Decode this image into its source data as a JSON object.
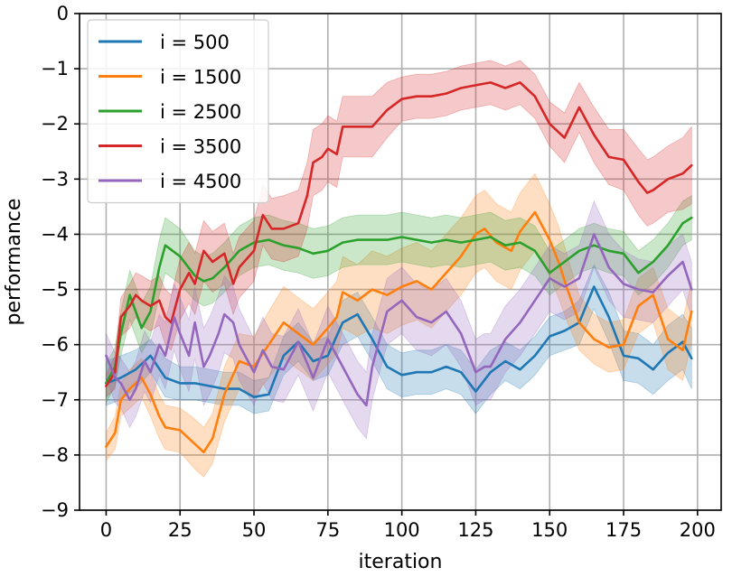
{
  "chart_data": {
    "type": "line",
    "title": "",
    "xlabel": "iteration",
    "ylabel": "performance",
    "xlim": [
      -9,
      208
    ],
    "ylim": [
      -9,
      0
    ],
    "xticks": [
      0,
      25,
      50,
      75,
      100,
      125,
      150,
      175,
      200
    ],
    "yticks": [
      0,
      -1,
      -2,
      -3,
      -4,
      -5,
      -6,
      -7,
      -8,
      -9
    ],
    "ytick_labels": [
      "0",
      "−1",
      "−2",
      "−3",
      "−4",
      "−5",
      "−6",
      "−7",
      "−8",
      "−9"
    ],
    "grid": true,
    "legend_position": "top-left",
    "series": [
      {
        "name": "i = 500",
        "color": "#1f77b4",
        "x": [
          0,
          5,
          10,
          15,
          20,
          25,
          30,
          35,
          40,
          45,
          50,
          55,
          60,
          65,
          70,
          75,
          80,
          85,
          90,
          95,
          100,
          105,
          110,
          115,
          120,
          125,
          130,
          135,
          140,
          145,
          150,
          155,
          160,
          165,
          170,
          175,
          180,
          185,
          190,
          195,
          198
        ],
        "y": [
          -6.7,
          -6.6,
          -6.45,
          -6.2,
          -6.6,
          -6.7,
          -6.7,
          -6.75,
          -6.8,
          -6.8,
          -6.95,
          -6.9,
          -6.2,
          -5.95,
          -6.3,
          -6.2,
          -5.6,
          -5.45,
          -5.9,
          -6.4,
          -6.55,
          -6.5,
          -6.5,
          -6.4,
          -6.5,
          -6.85,
          -6.5,
          -6.3,
          -6.45,
          -6.2,
          -5.85,
          -5.75,
          -5.6,
          -4.95,
          -5.5,
          -6.2,
          -6.25,
          -6.45,
          -6.15,
          -5.95,
          -6.25
        ],
        "band": [
          0.4,
          0.4,
          0.35,
          0.3,
          0.35,
          0.3,
          0.3,
          0.3,
          0.3,
          0.3,
          0.3,
          0.3,
          0.35,
          0.35,
          0.35,
          0.35,
          0.4,
          0.4,
          0.4,
          0.4,
          0.4,
          0.4,
          0.4,
          0.4,
          0.4,
          0.4,
          0.4,
          0.35,
          0.35,
          0.35,
          0.35,
          0.35,
          0.4,
          0.4,
          0.45,
          0.45,
          0.45,
          0.45,
          0.5,
          0.5,
          0.55
        ]
      },
      {
        "name": "i = 1500",
        "color": "#ff7f0e",
        "x": [
          0,
          3,
          5,
          8,
          12,
          15,
          18,
          20,
          25,
          30,
          33,
          36,
          40,
          45,
          50,
          55,
          60,
          65,
          70,
          75,
          78,
          80,
          85,
          90,
          95,
          100,
          105,
          110,
          115,
          120,
          125,
          128,
          132,
          137,
          140,
          145,
          150,
          153,
          156,
          160,
          165,
          170,
          175,
          180,
          185,
          190,
          195,
          198
        ],
        "y": [
          -7.85,
          -7.6,
          -7.0,
          -6.8,
          -6.6,
          -6.9,
          -7.3,
          -7.5,
          -7.55,
          -7.8,
          -7.95,
          -7.7,
          -6.9,
          -6.3,
          -6.4,
          -6.0,
          -5.6,
          -5.8,
          -6.0,
          -5.7,
          -5.5,
          -5.05,
          -5.2,
          -5.0,
          -5.1,
          -4.95,
          -4.85,
          -5.0,
          -4.7,
          -4.4,
          -4.0,
          -3.9,
          -4.15,
          -4.3,
          -3.95,
          -3.6,
          -4.1,
          -4.5,
          -5.0,
          -5.6,
          -5.9,
          -6.05,
          -6.0,
          -5.3,
          -5.1,
          -5.9,
          -6.1,
          -5.4
        ],
        "band": [
          0.25,
          0.3,
          0.3,
          0.35,
          0.35,
          0.4,
          0.4,
          0.4,
          0.4,
          0.45,
          0.45,
          0.45,
          0.5,
          0.5,
          0.55,
          0.6,
          0.65,
          0.65,
          0.65,
          0.65,
          0.65,
          0.65,
          0.65,
          0.7,
          0.7,
          0.7,
          0.7,
          0.7,
          0.7,
          0.7,
          0.7,
          0.7,
          0.7,
          0.7,
          0.7,
          0.7,
          0.65,
          0.65,
          0.6,
          0.5,
          0.45,
          0.45,
          0.45,
          0.5,
          0.5,
          0.55,
          0.55,
          0.55
        ]
      },
      {
        "name": "i = 2500",
        "color": "#2ca02c",
        "x": [
          0,
          3,
          5,
          8,
          10,
          12,
          15,
          18,
          20,
          25,
          30,
          33,
          36,
          40,
          45,
          50,
          55,
          60,
          65,
          70,
          75,
          80,
          85,
          90,
          95,
          100,
          105,
          110,
          115,
          120,
          125,
          130,
          135,
          140,
          145,
          150,
          155,
          160,
          165,
          170,
          175,
          180,
          185,
          190,
          195,
          198
        ],
        "y": [
          -6.7,
          -6.4,
          -5.8,
          -5.1,
          -5.4,
          -5.7,
          -5.4,
          -4.6,
          -4.2,
          -4.4,
          -4.75,
          -4.85,
          -4.8,
          -4.6,
          -4.3,
          -4.15,
          -4.1,
          -4.2,
          -4.25,
          -4.35,
          -4.3,
          -4.15,
          -4.1,
          -4.1,
          -4.1,
          -4.05,
          -4.1,
          -4.15,
          -4.1,
          -4.15,
          -4.1,
          -4.05,
          -4.2,
          -4.15,
          -4.3,
          -4.7,
          -4.5,
          -4.3,
          -4.2,
          -4.3,
          -4.35,
          -4.7,
          -4.5,
          -4.2,
          -3.8,
          -3.7
        ],
        "band": [
          0.35,
          0.35,
          0.4,
          0.45,
          0.45,
          0.45,
          0.45,
          0.5,
          0.5,
          0.5,
          0.45,
          0.45,
          0.45,
          0.45,
          0.45,
          0.45,
          0.45,
          0.45,
          0.45,
          0.45,
          0.45,
          0.45,
          0.45,
          0.45,
          0.45,
          0.45,
          0.45,
          0.45,
          0.45,
          0.45,
          0.45,
          0.45,
          0.45,
          0.45,
          0.45,
          0.4,
          0.4,
          0.4,
          0.4,
          0.4,
          0.4,
          0.4,
          0.4,
          0.4,
          0.4,
          0.4
        ]
      },
      {
        "name": "i = 3500",
        "color": "#d62728",
        "x": [
          0,
          3,
          5,
          8,
          10,
          12,
          15,
          18,
          20,
          22,
          25,
          28,
          30,
          33,
          36,
          40,
          43,
          45,
          50,
          53,
          56,
          60,
          65,
          68,
          70,
          73,
          75,
          78,
          80,
          85,
          90,
          95,
          100,
          105,
          110,
          115,
          120,
          125,
          130,
          135,
          140,
          145,
          150,
          155,
          160,
          165,
          170,
          175,
          180,
          183,
          185,
          190,
          195,
          198
        ],
        "y": [
          -6.75,
          -6.5,
          -5.5,
          -5.3,
          -5.1,
          -5.2,
          -5.3,
          -5.2,
          -5.5,
          -5.6,
          -5.0,
          -4.7,
          -4.9,
          -4.3,
          -4.5,
          -4.35,
          -4.9,
          -4.6,
          -4.3,
          -3.65,
          -3.9,
          -3.9,
          -3.8,
          -3.3,
          -2.7,
          -2.6,
          -2.45,
          -2.55,
          -2.05,
          -2.05,
          -2.05,
          -1.75,
          -1.55,
          -1.5,
          -1.5,
          -1.45,
          -1.35,
          -1.3,
          -1.25,
          -1.35,
          -1.25,
          -1.5,
          -2.0,
          -2.25,
          -1.7,
          -2.2,
          -2.6,
          -2.65,
          -3.05,
          -3.25,
          -3.2,
          -3.0,
          -2.9,
          -2.75
        ],
        "band": [
          0.2,
          0.3,
          0.35,
          0.4,
          0.4,
          0.45,
          0.45,
          0.45,
          0.5,
          0.5,
          0.55,
          0.55,
          0.55,
          0.55,
          0.55,
          0.55,
          0.55,
          0.55,
          0.55,
          0.55,
          0.55,
          0.6,
          0.6,
          0.6,
          0.6,
          0.6,
          0.6,
          0.6,
          0.55,
          0.55,
          0.55,
          0.5,
          0.4,
          0.4,
          0.4,
          0.4,
          0.4,
          0.4,
          0.4,
          0.4,
          0.4,
          0.4,
          0.4,
          0.45,
          0.45,
          0.5,
          0.5,
          0.55,
          0.6,
          0.6,
          0.6,
          0.6,
          0.65,
          0.7
        ]
      },
      {
        "name": "i = 4500",
        "color": "#9467bd",
        "x": [
          0,
          3,
          5,
          8,
          10,
          13,
          15,
          18,
          20,
          23,
          25,
          28,
          30,
          33,
          35,
          38,
          40,
          43,
          45,
          50,
          53,
          56,
          60,
          65,
          70,
          75,
          80,
          85,
          88,
          90,
          95,
          100,
          105,
          110,
          115,
          120,
          125,
          128,
          130,
          135,
          140,
          145,
          150,
          155,
          160,
          165,
          168,
          170,
          175,
          180,
          185,
          190,
          195,
          198
        ],
        "y": [
          -6.2,
          -6.6,
          -6.7,
          -7.0,
          -6.8,
          -6.3,
          -6.5,
          -6.0,
          -6.2,
          -5.5,
          -5.8,
          -6.2,
          -5.6,
          -6.4,
          -6.2,
          -5.8,
          -5.45,
          -5.6,
          -6.0,
          -6.5,
          -6.1,
          -6.4,
          -6.45,
          -5.95,
          -6.6,
          -5.9,
          -6.4,
          -6.9,
          -7.1,
          -6.4,
          -5.4,
          -5.2,
          -5.5,
          -5.6,
          -5.4,
          -5.8,
          -6.5,
          -6.4,
          -6.4,
          -5.9,
          -5.6,
          -5.2,
          -4.8,
          -4.95,
          -4.8,
          -4.0,
          -4.35,
          -4.6,
          -4.9,
          -5.0,
          -5.05,
          -4.75,
          -4.5,
          -5.0
        ],
        "band": [
          0.4,
          0.45,
          0.45,
          0.5,
          0.5,
          0.55,
          0.55,
          0.55,
          0.6,
          0.6,
          0.65,
          0.65,
          0.65,
          0.7,
          0.7,
          0.7,
          0.7,
          0.65,
          0.65,
          0.6,
          0.6,
          0.6,
          0.6,
          0.6,
          0.6,
          0.6,
          0.6,
          0.6,
          0.6,
          0.6,
          0.6,
          0.6,
          0.6,
          0.6,
          0.6,
          0.6,
          0.6,
          0.6,
          0.6,
          0.6,
          0.6,
          0.6,
          0.6,
          0.6,
          0.6,
          0.6,
          0.6,
          0.6,
          0.6,
          0.55,
          0.55,
          0.55,
          0.5,
          0.5
        ]
      }
    ]
  }
}
